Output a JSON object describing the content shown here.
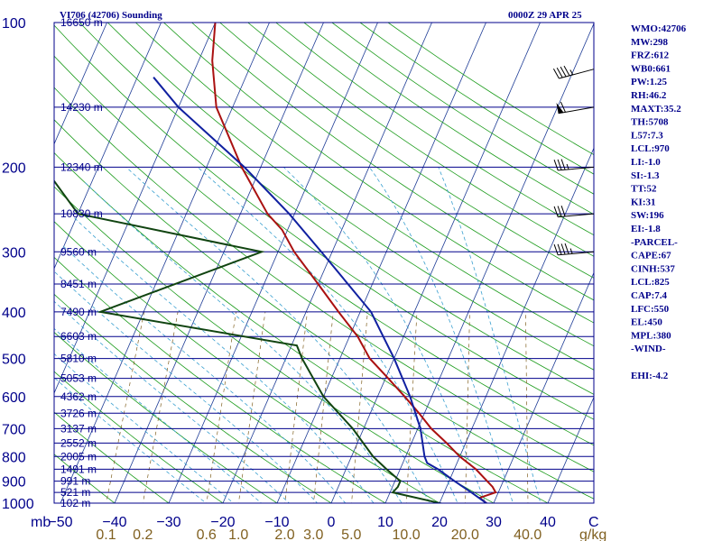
{
  "header": {
    "station": "VI706 (42706) Sounding",
    "time": "0000Z 29 APR 25"
  },
  "colors": {
    "isobar": "#00008b",
    "isotherm": "#1e3c96",
    "dry_adiabat": "#1b9b1b",
    "moist_adiabat": "#3aa0d0",
    "mixing_ratio": "#806020",
    "temperature": "#aa1111",
    "dewpoint": "#114411",
    "parcel": "#1020a0",
    "text": "#00008b"
  },
  "chart_data": {
    "type": "line",
    "chart_kind": "skew-T log-P sounding",
    "pressure_axis": {
      "unit_label": "mb",
      "ticks": [
        100,
        200,
        300,
        400,
        500,
        600,
        700,
        800,
        900,
        1000
      ]
    },
    "temperature_axis": {
      "ticks": [
        -50,
        -40,
        -30,
        -20,
        -10,
        0,
        10,
        20,
        30,
        40
      ],
      "extra_label": "C"
    },
    "mixing_ratio_axis": {
      "ticks": [
        "0.1",
        "0.2",
        "0.6",
        "1.0",
        "2.0",
        "3.0",
        "5.0",
        "10.0",
        "20.0",
        "40.0"
      ],
      "unit_label": "g/kg"
    },
    "heights": [
      {
        "p": 100,
        "label": "16650 m"
      },
      {
        "p": 150,
        "label": "14230 m"
      },
      {
        "p": 200,
        "label": "12340 m"
      },
      {
        "p": 250,
        "label": "10830 m"
      },
      {
        "p": 300,
        "label": "9560 m"
      },
      {
        "p": 350,
        "label": "8451 m"
      },
      {
        "p": 400,
        "label": "7490 m"
      },
      {
        "p": 450,
        "label": "6603 m"
      },
      {
        "p": 500,
        "label": "5810 m"
      },
      {
        "p": 550,
        "label": "5053 m"
      },
      {
        "p": 600,
        "label": "4362 m"
      },
      {
        "p": 650,
        "label": "3726 m"
      },
      {
        "p": 700,
        "label": "3137 m"
      },
      {
        "p": 750,
        "label": "2552 m"
      },
      {
        "p": 800,
        "label": "2005 m"
      },
      {
        "p": 850,
        "label": "1491 m"
      },
      {
        "p": 900,
        "label": "991 m"
      },
      {
        "p": 950,
        "label": "521 m"
      },
      {
        "p": 1000,
        "label": "102 m"
      }
    ],
    "series": [
      {
        "name": "temperature",
        "points": [
          [
            1005,
            29
          ],
          [
            975,
            27
          ],
          [
            950,
            29.5
          ],
          [
            925,
            28.5
          ],
          [
            850,
            24
          ],
          [
            800,
            20
          ],
          [
            750,
            16.5
          ],
          [
            700,
            12.5
          ],
          [
            650,
            9
          ],
          [
            600,
            5
          ],
          [
            550,
            0.5
          ],
          [
            500,
            -4.5
          ],
          [
            450,
            -8.5
          ],
          [
            400,
            -14
          ],
          [
            350,
            -20
          ],
          [
            300,
            -27
          ],
          [
            270,
            -31
          ],
          [
            250,
            -35
          ],
          [
            200,
            -43.5
          ],
          [
            150,
            -53
          ],
          [
            120,
            -57.5
          ],
          [
            100,
            -60
          ]
        ]
      },
      {
        "name": "dewpoint",
        "points": [
          [
            1005,
            21
          ],
          [
            950,
            10.5
          ],
          [
            925,
            11
          ],
          [
            900,
            11
          ],
          [
            850,
            7.5
          ],
          [
            800,
            4
          ],
          [
            700,
            -2
          ],
          [
            600,
            -10
          ],
          [
            500,
            -17
          ],
          [
            470,
            -19
          ],
          [
            400,
            -58
          ],
          [
            300,
            -33
          ],
          [
            250,
            -70
          ],
          [
            200,
            -80
          ],
          [
            150,
            -85
          ],
          [
            100,
            -90
          ]
        ]
      },
      {
        "name": "parcel",
        "points": [
          [
            1005,
            29
          ],
          [
            950,
            25
          ],
          [
            900,
            21
          ],
          [
            850,
            17
          ],
          [
            825,
            14.5
          ],
          [
            800,
            13.5
          ],
          [
            700,
            10.5
          ],
          [
            600,
            6
          ],
          [
            500,
            0
          ],
          [
            400,
            -8
          ],
          [
            300,
            -22
          ],
          [
            250,
            -31
          ],
          [
            200,
            -43
          ],
          [
            150,
            -60
          ],
          [
            130,
            -67
          ]
        ]
      }
    ],
    "winds": [
      {
        "p": 125,
        "dir": 255,
        "spd": 45
      },
      {
        "p": 150,
        "dir": 260,
        "spd": 60
      },
      {
        "p": 200,
        "dir": 265,
        "spd": 35
      },
      {
        "p": 250,
        "dir": 265,
        "spd": 30
      },
      {
        "p": 300,
        "dir": 265,
        "spd": 45
      }
    ]
  },
  "indices": [
    "WMO:42706",
    "MW:298",
    "FRZ:612",
    "WB0:661",
    "PW:1.25",
    "RH:46.2",
    "MAXT:35.2",
    "TH:5708",
    "L57:7.3",
    "LCL:970",
    "LI:-1.0",
    "SI:-1.3",
    "TT:52",
    "KI:31",
    "SW:196",
    "EI:-1.8",
    "-PARCEL-",
    "CAPE:67",
    "CINH:537",
    "LCL:825",
    "CAP:7.4",
    "LFC:550",
    "EL:450",
    "MPL:380",
    "-WIND-",
    "",
    "EHI:-4.2"
  ]
}
